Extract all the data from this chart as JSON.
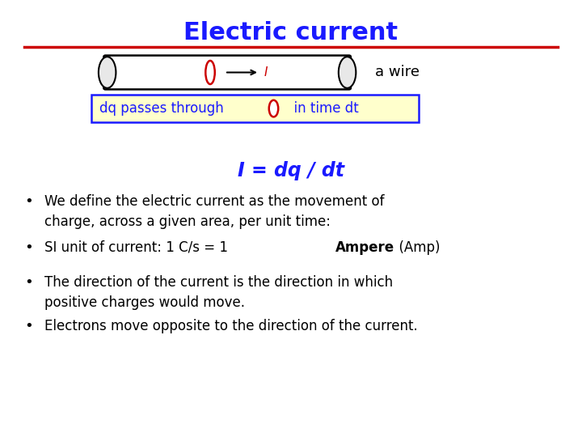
{
  "title": "Electric current",
  "title_color": "#1a1aff",
  "title_fontsize": 22,
  "separator_color": "#cc0000",
  "wire_label": "a wire",
  "wire_label_color": "#000000",
  "box_label_color": "#1a1aff",
  "box_bg": "#ffffcc",
  "box_border": "#1a1aff",
  "formula": "I = dq / dt",
  "formula_color": "#1a1aff",
  "bullet_color": "#000000",
  "bullets": [
    "We define the electric current as the movement of\ncharge, across a given area, per unit time:",
    "SI unit of current: 1 C/s = 1 Ampere  (Amp)",
    "The direction of the current is the direction in which\npositive charges would move.",
    "Electrons move opposite to the direction of the current."
  ],
  "background_color": "#ffffff"
}
